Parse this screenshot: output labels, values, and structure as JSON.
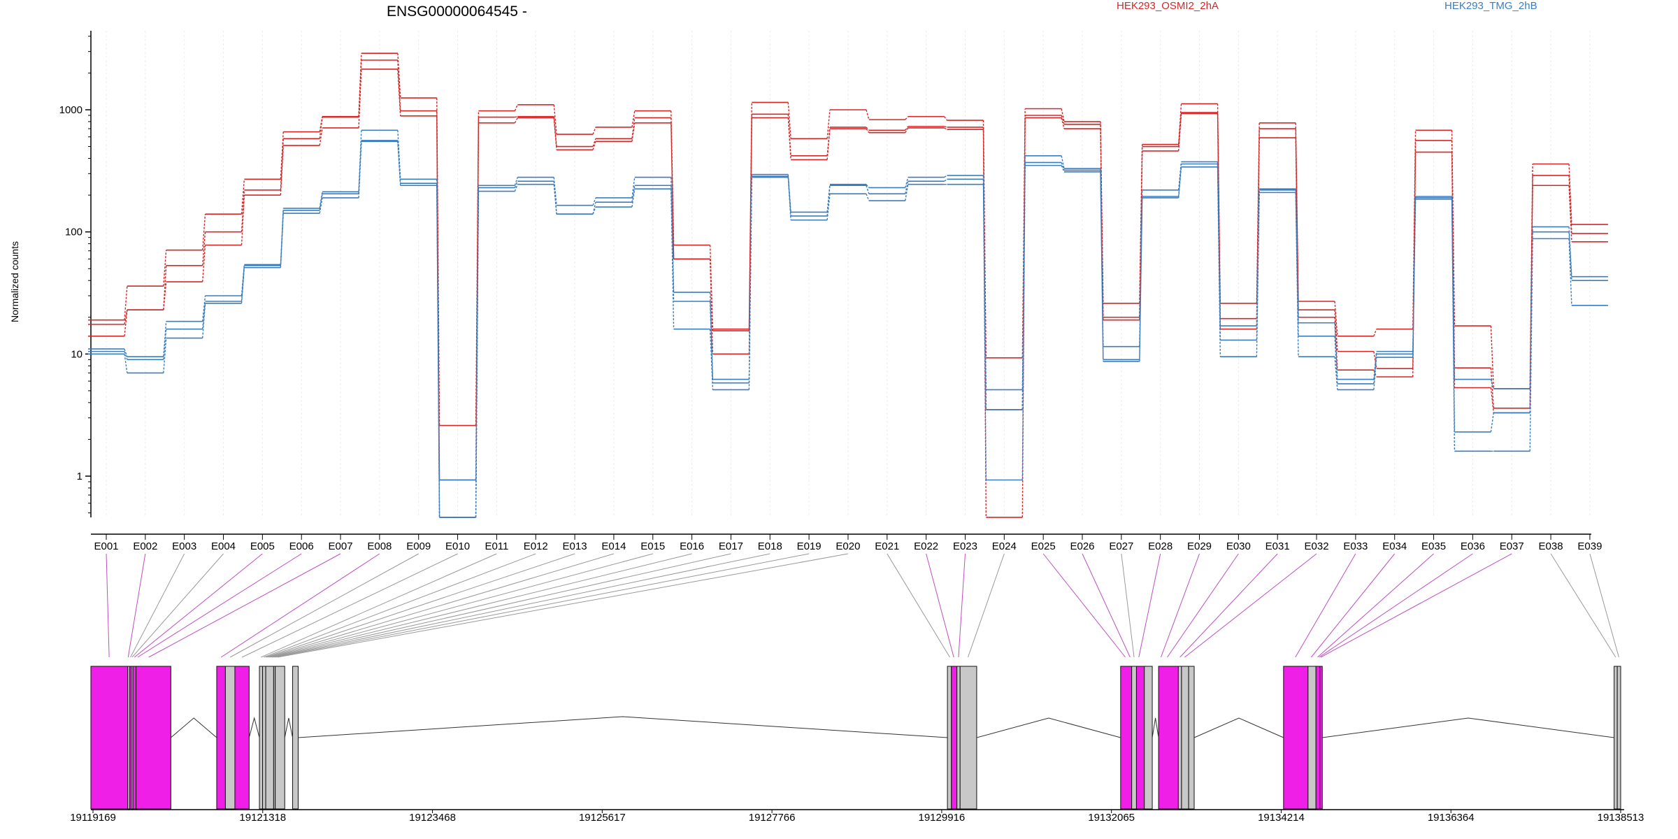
{
  "title": "ENSG00000064545 -",
  "colors": {
    "HEK293_OSMI2_2hA": "#d62728",
    "HEK293_TMG_2hB": "#3a7ebf",
    "model_exon_fill": "#f01fe8",
    "model_other_fill": "#c8c8c8",
    "link_magenta": "#c04ec0",
    "link_gray": "#999999",
    "gridline": "#ececec"
  },
  "chart_data": {
    "type": "line",
    "title": "ENSG00000064545 -",
    "xlabel": "",
    "ylabel": "Normalized counts",
    "yscale": "log",
    "ylim": [
      0.42,
      3800
    ],
    "yticks": [
      "1",
      "10",
      "100",
      "1000"
    ],
    "grid": "vertical",
    "legend_position": "top",
    "categories": [
      "E001",
      "E002",
      "E003",
      "E004",
      "E005",
      "E006",
      "E007",
      "E008",
      "E009",
      "E010",
      "E011",
      "E012",
      "E013",
      "E014",
      "E015",
      "E016",
      "E017",
      "E018",
      "E019",
      "E020",
      "E021",
      "E022",
      "E023",
      "E024",
      "E025",
      "E026",
      "E027",
      "E028",
      "E029",
      "E030",
      "E031",
      "E032",
      "E033",
      "E034",
      "E035",
      "E036",
      "E037",
      "E038",
      "E039"
    ],
    "model_exon_types": [
      "magenta",
      "magenta",
      "gray",
      "gray",
      "magenta",
      "magenta",
      "magenta",
      "magenta",
      "gray",
      "gray",
      "gray",
      "gray",
      "gray",
      "gray",
      "gray",
      "gray",
      "gray",
      "gray",
      "gray",
      "gray",
      "gray",
      "magenta",
      "magenta",
      "gray",
      "magenta",
      "magenta",
      "gray",
      "magenta",
      "magenta",
      "magenta",
      "magenta",
      "magenta",
      "magenta",
      "magenta",
      "magenta",
      "magenta",
      "magenta",
      "gray",
      "gray"
    ],
    "series": [
      {
        "name": "HEK293_OSMI2_2hA",
        "group": "HEK293_OSMI2_2hA",
        "values": [
          19,
          36,
          71,
          140,
          270,
          660,
          880,
          2900,
          1250,
          2.6,
          980,
          1100,
          630,
          720,
          980,
          78,
          16,
          1150,
          580,
          1000,
          830,
          880,
          820,
          9.3,
          1020,
          800,
          26,
          520,
          1120,
          26,
          780,
          27,
          14,
          16,
          680,
          17,
          5.2,
          360,
          115
        ]
      },
      {
        "name": "HEK293_OSMI2_2hA",
        "group": "HEK293_OSMI2_2hA",
        "values": [
          17.5,
          23,
          53,
          100,
          220,
          580,
          870,
          2550,
          980,
          0.93,
          870,
          880,
          500,
          580,
          860,
          60,
          15.5,
          920,
          420,
          720,
          680,
          730,
          720,
          3.5,
          900,
          760,
          20,
          500,
          950,
          19.5,
          700,
          23,
          10.5,
          7.6,
          560,
          7.7,
          3.6,
          290,
          97
        ]
      },
      {
        "name": "HEK293_OSMI2_2hA",
        "group": "HEK293_OSMI2_2hA",
        "values": [
          14,
          23,
          39,
          78,
          200,
          510,
          710,
          2150,
          890,
          0.46,
          780,
          860,
          470,
          550,
          780,
          60,
          10,
          860,
          390,
          700,
          650,
          710,
          690,
          0.46,
          860,
          700,
          19,
          460,
          930,
          16,
          590,
          20,
          7.4,
          6.5,
          450,
          5.3,
          3.3,
          240,
          83
        ]
      },
      {
        "name": "HEK293_TMG_2hB",
        "group": "HEK293_TMG_2hB",
        "values": [
          11,
          9.5,
          18.5,
          30,
          54,
          156,
          213,
          680,
          270,
          0.93,
          240,
          280,
          165,
          190,
          280,
          32,
          6.2,
          295,
          145,
          245,
          230,
          280,
          290,
          5.1,
          420,
          330,
          11.5,
          220,
          375,
          17,
          225,
          18,
          6.2,
          10.5,
          195,
          6.2,
          5.2,
          110,
          43
        ]
      },
      {
        "name": "HEK293_TMG_2hB",
        "group": "HEK293_TMG_2hB",
        "values": [
          10.5,
          9,
          16,
          27,
          53,
          150,
          205,
          560,
          250,
          0.46,
          230,
          260,
          140,
          175,
          240,
          27,
          5.8,
          285,
          135,
          240,
          205,
          260,
          270,
          3.5,
          370,
          320,
          9,
          195,
          360,
          13,
          220,
          14,
          5.7,
          10,
          190,
          2.3,
          3.3,
          100,
          40
        ]
      },
      {
        "name": "HEK293_TMG_2hB",
        "group": "HEK293_TMG_2hB",
        "values": [
          10,
          7,
          13.5,
          26,
          51,
          142,
          190,
          550,
          240,
          0.46,
          215,
          245,
          140,
          160,
          225,
          16,
          5.1,
          280,
          125,
          205,
          180,
          245,
          245,
          0.93,
          350,
          310,
          8.7,
          190,
          340,
          9.5,
          210,
          9.5,
          5.1,
          9.4,
          185,
          1.6,
          1.6,
          88,
          25
        ]
      }
    ]
  },
  "gene_model": {
    "coordinate_labels": [
      "19119169",
      "19121318",
      "19123468",
      "19125617",
      "19127766",
      "19129916",
      "19132065",
      "19134214",
      "19136364",
      "19138513"
    ],
    "coord_min": 19119169,
    "coord_max": 19138513,
    "blocks": [
      {
        "start": 19119169,
        "end": 19119636,
        "type": "magenta"
      },
      {
        "start": 19119636,
        "end": 19119660,
        "type": "gray"
      },
      {
        "start": 19119660,
        "end": 19119680,
        "type": "magenta"
      },
      {
        "start": 19119680,
        "end": 19119700,
        "type": "gray"
      },
      {
        "start": 19119700,
        "end": 19119740,
        "type": "magenta"
      },
      {
        "start": 19119740,
        "end": 19120180,
        "type": "magenta"
      },
      {
        "start": 19120760,
        "end": 19120870,
        "type": "magenta"
      },
      {
        "start": 19120870,
        "end": 19120990,
        "type": "gray"
      },
      {
        "start": 19120990,
        "end": 19121170,
        "type": "magenta"
      },
      {
        "start": 19121300,
        "end": 19121340,
        "type": "gray"
      },
      {
        "start": 19121340,
        "end": 19121380,
        "type": "gray"
      },
      {
        "start": 19121380,
        "end": 19121480,
        "type": "gray"
      },
      {
        "start": 19121480,
        "end": 19121500,
        "type": "gray"
      },
      {
        "start": 19121500,
        "end": 19121620,
        "type": "gray"
      },
      {
        "start": 19121720,
        "end": 19121790,
        "type": "gray"
      },
      {
        "start": 19130000,
        "end": 19130050,
        "type": "gray"
      },
      {
        "start": 19130050,
        "end": 19130120,
        "type": "magenta"
      },
      {
        "start": 19130120,
        "end": 19130160,
        "type": "gray"
      },
      {
        "start": 19130160,
        "end": 19130370,
        "type": "gray"
      },
      {
        "start": 19132190,
        "end": 19132330,
        "type": "magenta"
      },
      {
        "start": 19132330,
        "end": 19132390,
        "type": "gray"
      },
      {
        "start": 19132390,
        "end": 19132490,
        "type": "magenta"
      },
      {
        "start": 19132490,
        "end": 19132590,
        "type": "gray"
      },
      {
        "start": 19132670,
        "end": 19132920,
        "type": "magenta"
      },
      {
        "start": 19132920,
        "end": 19132960,
        "type": "gray"
      },
      {
        "start": 19132960,
        "end": 19133050,
        "type": "gray"
      },
      {
        "start": 19133050,
        "end": 19133120,
        "type": "gray"
      },
      {
        "start": 19134250,
        "end": 19134560,
        "type": "magenta"
      },
      {
        "start": 19134560,
        "end": 19134660,
        "type": "gray"
      },
      {
        "start": 19134660,
        "end": 19134710,
        "type": "magenta"
      },
      {
        "start": 19134710,
        "end": 19134740,
        "type": "magenta"
      },
      {
        "start": 19138430,
        "end": 19138470,
        "type": "gray"
      },
      {
        "start": 19138470,
        "end": 19138513,
        "type": "gray"
      }
    ],
    "junctions": [
      [
        19120180,
        19120760
      ],
      [
        19121170,
        19121300
      ],
      [
        19121620,
        19121720
      ],
      [
        19121790,
        19130000
      ],
      [
        19130370,
        19132190
      ],
      [
        19132590,
        19132670
      ],
      [
        19133120,
        19134250
      ],
      [
        19134740,
        19138430
      ]
    ],
    "exon_links": [
      {
        "label": "E001",
        "target": 19119400
      },
      {
        "label": "E002",
        "target": 19119640
      },
      {
        "label": "E003",
        "target": 19119670
      },
      {
        "label": "E004",
        "target": 19119690
      },
      {
        "label": "E005",
        "target": 19119720
      },
      {
        "label": "E006",
        "target": 19119760
      },
      {
        "label": "E007",
        "target": 19119900
      },
      {
        "label": "E008",
        "target": 19120815
      },
      {
        "label": "E009",
        "target": 19120930
      },
      {
        "label": "E010",
        "target": 19121080
      },
      {
        "label": "E011",
        "target": 19121320
      },
      {
        "label": "E012",
        "target": 19121355
      },
      {
        "label": "E013",
        "target": 19121380
      },
      {
        "label": "E014",
        "target": 19121400
      },
      {
        "label": "E015",
        "target": 19121420
      },
      {
        "label": "E016",
        "target": 19121440
      },
      {
        "label": "E017",
        "target": 19121460
      },
      {
        "label": "E018",
        "target": 19121480
      },
      {
        "label": "E019",
        "target": 19121500
      },
      {
        "label": "E020",
        "target": 19121530
      },
      {
        "label": "E021",
        "target": 19130030
      },
      {
        "label": "E022",
        "target": 19130080
      },
      {
        "label": "E023",
        "target": 19130140
      },
      {
        "label": "E024",
        "target": 19130260
      },
      {
        "label": "E025",
        "target": 19132250
      },
      {
        "label": "E026",
        "target": 19132310
      },
      {
        "label": "E027",
        "target": 19132360
      },
      {
        "label": "E028",
        "target": 19132420
      },
      {
        "label": "E029",
        "target": 19132700
      },
      {
        "label": "E030",
        "target": 19132780
      },
      {
        "label": "E031",
        "target": 19132940
      },
      {
        "label": "E032",
        "target": 19133000
      },
      {
        "label": "E033",
        "target": 19134400
      },
      {
        "label": "E034",
        "target": 19134600
      },
      {
        "label": "E035",
        "target": 19134680
      },
      {
        "label": "E036",
        "target": 19134700
      },
      {
        "label": "E037",
        "target": 19134720
      },
      {
        "label": "E038",
        "target": 19138450
      },
      {
        "label": "E039",
        "target": 19138490
      }
    ]
  }
}
